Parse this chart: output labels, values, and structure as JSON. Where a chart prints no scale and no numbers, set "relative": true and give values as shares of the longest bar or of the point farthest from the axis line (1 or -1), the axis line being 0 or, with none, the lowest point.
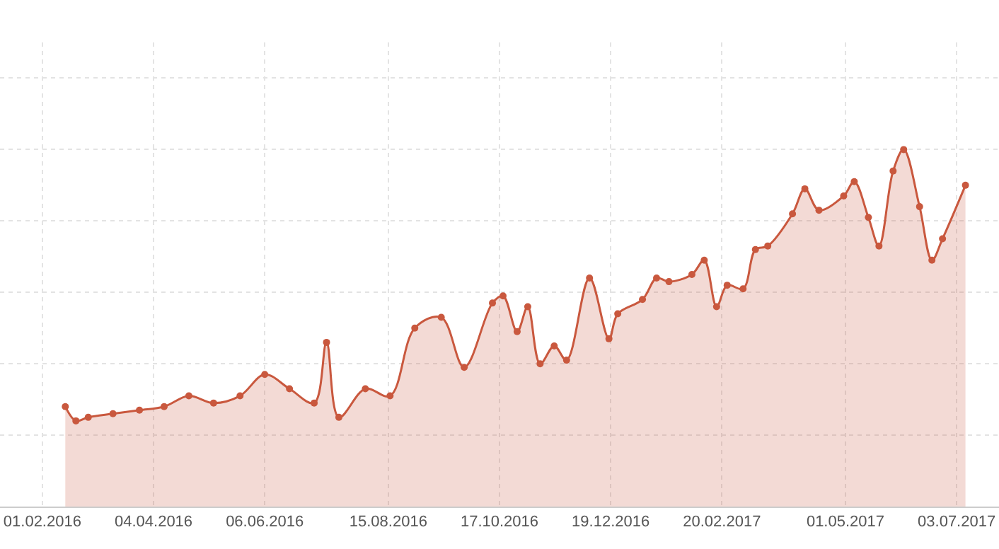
{
  "chart_data": {
    "type": "area",
    "relative": true,
    "color": "#c9583e",
    "marker": "circle",
    "grid": true,
    "legend": false,
    "xlim": [
      "2016-01-08",
      "2017-07-27"
    ],
    "xticks": [
      {
        "value": "2016-02-01",
        "label": "01.02.2016"
      },
      {
        "value": "2016-04-04",
        "label": "04.04.2016"
      },
      {
        "value": "2016-06-06",
        "label": "06.06.2016"
      },
      {
        "value": "2016-08-15",
        "label": "15.08.2016"
      },
      {
        "value": "2016-10-17",
        "label": "17.10.2016"
      },
      {
        "value": "2016-12-19",
        "label": "19.12.2016"
      },
      {
        "value": "2017-02-20",
        "label": "20.02.2017"
      },
      {
        "value": "2017-05-01",
        "label": "01.05.2017"
      },
      {
        "value": "2017-07-03",
        "label": "03.07.2017"
      }
    ],
    "x": [
      "2016-02-14",
      "2016-02-20",
      "2016-02-27",
      "2016-03-12",
      "2016-03-27",
      "2016-04-10",
      "2016-04-24",
      "2016-05-08",
      "2016-05-23",
      "2016-06-06",
      "2016-06-20",
      "2016-07-04",
      "2016-07-11",
      "2016-07-18",
      "2016-08-02",
      "2016-08-16",
      "2016-08-30",
      "2016-09-14",
      "2016-09-27",
      "2016-10-13",
      "2016-10-19",
      "2016-10-27",
      "2016-11-02",
      "2016-11-09",
      "2016-11-17",
      "2016-11-24",
      "2016-12-07",
      "2016-12-18",
      "2016-12-23",
      "2017-01-06",
      "2017-01-14",
      "2017-01-21",
      "2017-02-03",
      "2017-02-10",
      "2017-02-17",
      "2017-02-23",
      "2017-03-04",
      "2017-03-11",
      "2017-03-18",
      "2017-04-01",
      "2017-04-08",
      "2017-04-16",
      "2017-04-30",
      "2017-05-06",
      "2017-05-14",
      "2017-05-20",
      "2017-05-28",
      "2017-06-03",
      "2017-06-12",
      "2017-06-19",
      "2017-06-25",
      "2017-07-08"
    ],
    "values": [
      0.28,
      0.24,
      0.25,
      0.26,
      0.27,
      0.28,
      0.31,
      0.29,
      0.31,
      0.37,
      0.33,
      0.29,
      0.46,
      0.25,
      0.33,
      0.31,
      0.5,
      0.53,
      0.39,
      0.57,
      0.59,
      0.49,
      0.56,
      0.4,
      0.45,
      0.41,
      0.64,
      0.47,
      0.54,
      0.58,
      0.64,
      0.63,
      0.65,
      0.69,
      0.56,
      0.62,
      0.61,
      0.72,
      0.73,
      0.82,
      0.89,
      0.83,
      0.87,
      0.91,
      0.81,
      0.73,
      0.94,
      1.0,
      0.84,
      0.69,
      0.75,
      0.9
    ]
  }
}
